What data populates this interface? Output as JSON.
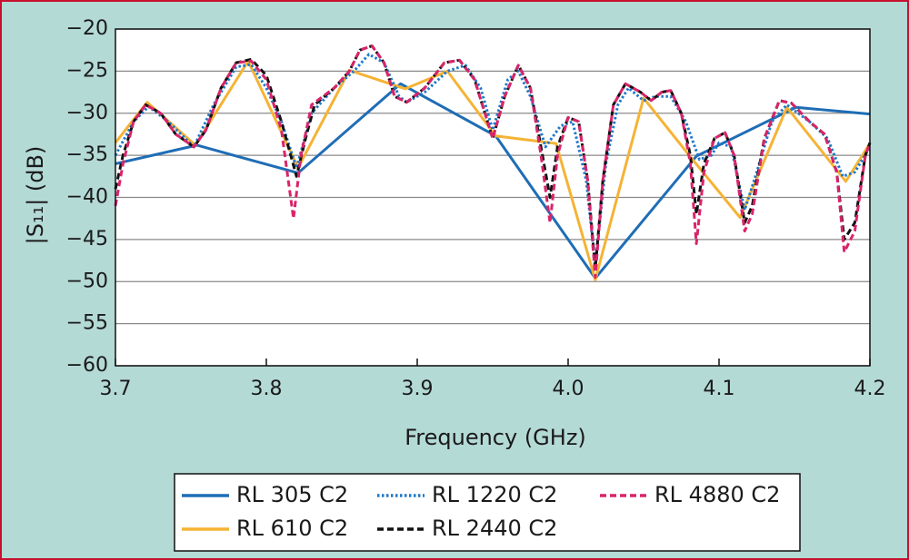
{
  "chart_data": {
    "type": "line",
    "xlabel": "Frequency (GHz)",
    "ylabel": "|S₁₁| (dB)",
    "xlim": [
      3.7,
      4.2
    ],
    "ylim": [
      -60,
      -20
    ],
    "xticks": [
      3.7,
      3.8,
      3.9,
      {
        "value": 4,
        "label": "4.0"
      },
      4.1,
      4.2
    ],
    "yticks": [
      {
        "value": -60,
        "label": "−60"
      },
      {
        "value": -55,
        "label": "−55"
      },
      {
        "value": -50,
        "label": "−50"
      },
      {
        "value": -45,
        "label": "−45"
      },
      {
        "value": -40,
        "label": "−40"
      },
      {
        "value": -35,
        "label": "−35"
      },
      {
        "value": -30,
        "label": "−30"
      },
      {
        "value": -25,
        "label": "−25"
      },
      {
        "value": -20,
        "label": "−20"
      }
    ],
    "grid": true,
    "series": [
      {
        "name": "RL 305 C2",
        "color": "#1f6db5",
        "line_style": "solid",
        "x": [
          3.7,
          3.754,
          3.821,
          3.889,
          3.952,
          4.018,
          4.085,
          4.151,
          4.2
        ],
        "values": [
          -36,
          -33.8,
          -37.1,
          -26.5,
          -32.7,
          -49.6,
          -35.1,
          -29.3,
          -30.1
        ]
      },
      {
        "name": "RL 610 C2",
        "color": "#f5b335",
        "line_style": "solid",
        "x": [
          3.7,
          3.721,
          3.753,
          3.788,
          3.821,
          3.855,
          3.892,
          3.92,
          3.952,
          3.992,
          4.018,
          4.05,
          4.082,
          4.114,
          4.145,
          4.184,
          4.2
        ],
        "values": [
          -33.5,
          -28.7,
          -33.8,
          -23.8,
          -36.5,
          -24.9,
          -27.1,
          -25,
          -32.7,
          -33.6,
          -49.8,
          -28.2,
          -35.4,
          -42.4,
          -29.3,
          -38.1,
          -33.6
        ]
      },
      {
        "name": "RL 1220 C2",
        "color": "#1f78c8",
        "line_style": "dotted",
        "x": [
          3.7,
          3.712,
          3.722,
          3.735,
          3.752,
          3.765,
          3.78,
          3.79,
          3.8,
          3.81,
          3.82,
          3.83,
          3.845,
          3.858,
          3.868,
          3.878,
          3.888,
          3.893,
          3.905,
          3.92,
          3.932,
          3.942,
          3.95,
          3.96,
          3.967,
          3.975,
          3.985,
          3.995,
          4.003,
          4.012,
          4.018,
          4.025,
          4.033,
          4.04,
          4.05,
          4.058,
          4.068,
          4.078,
          4.087,
          4.095,
          4.1,
          4.108,
          4.117,
          4.125,
          4.135,
          4.145,
          4.16,
          4.172,
          4.182,
          4.19,
          4.2
        ],
        "values": [
          -35,
          -31,
          -29.2,
          -31,
          -34,
          -29,
          -24.5,
          -24.2,
          -27,
          -31,
          -36.5,
          -30,
          -27,
          -25,
          -23,
          -24,
          -28,
          -28.7,
          -27.5,
          -25,
          -24.3,
          -27,
          -32,
          -26,
          -25,
          -28,
          -34,
          -31.5,
          -31,
          -38,
          -48,
          -36,
          -29,
          -27,
          -28.5,
          -28,
          -28,
          -31,
          -35.5,
          -35,
          -33.5,
          -34,
          -41.5,
          -37,
          -31,
          -29,
          -31,
          -33,
          -37.5,
          -37,
          -34
        ]
      },
      {
        "name": "RL 2440 C2",
        "color": "#111111",
        "line_style": "dashed",
        "x": [
          3.7,
          3.705,
          3.712,
          3.72,
          3.73,
          3.74,
          3.752,
          3.76,
          3.77,
          3.78,
          3.79,
          3.8,
          3.81,
          3.82,
          3.826,
          3.832,
          3.845,
          3.855,
          3.862,
          3.87,
          3.878,
          3.885,
          3.893,
          3.905,
          3.918,
          3.928,
          3.938,
          3.95,
          3.958,
          3.967,
          3.975,
          3.982,
          3.988,
          3.993,
          4,
          4.007,
          4.013,
          4.018,
          4.023,
          4.03,
          4.038,
          4.048,
          4.055,
          4.062,
          4.068,
          4.075,
          4.081,
          4.085,
          4.09,
          4.097,
          4.104,
          4.11,
          4.117,
          4.122,
          4.13,
          4.14,
          4.148,
          4.16,
          4.17,
          4.178,
          4.183,
          4.19,
          4.197,
          4.2
        ],
        "values": [
          -39,
          -35,
          -31,
          -29,
          -30,
          -32.5,
          -34,
          -32,
          -27,
          -24,
          -23.6,
          -25.5,
          -31,
          -37.5,
          -33,
          -29,
          -27,
          -25,
          -22.5,
          -22,
          -24,
          -28,
          -28.7,
          -27,
          -24,
          -23.7,
          -26,
          -33,
          -28,
          -24.3,
          -27,
          -34,
          -40,
          -34,
          -30.5,
          -31,
          -38,
          -48.5,
          -38,
          -29,
          -26.5,
          -27.5,
          -28.5,
          -27.5,
          -27.3,
          -30,
          -35,
          -42,
          -36,
          -33,
          -32.3,
          -35,
          -43,
          -41,
          -33,
          -28.5,
          -28.8,
          -31,
          -32.5,
          -37,
          -45,
          -43,
          -35,
          -33.5
        ]
      },
      {
        "name": "RL 4880 C2",
        "color": "#d9246a",
        "line_style": "dashed",
        "x": [
          3.7,
          3.705,
          3.712,
          3.72,
          3.73,
          3.74,
          3.752,
          3.76,
          3.77,
          3.78,
          3.79,
          3.8,
          3.81,
          3.818,
          3.823,
          3.83,
          3.845,
          3.855,
          3.862,
          3.87,
          3.878,
          3.885,
          3.893,
          3.905,
          3.918,
          3.928,
          3.938,
          3.95,
          3.958,
          3.967,
          3.975,
          3.982,
          3.988,
          3.993,
          4,
          4.007,
          4.013,
          4.018,
          4.023,
          4.03,
          4.038,
          4.048,
          4.055,
          4.062,
          4.068,
          4.075,
          4.081,
          4.085,
          4.09,
          4.097,
          4.104,
          4.11,
          4.117,
          4.122,
          4.13,
          4.14,
          4.148,
          4.16,
          4.17,
          4.178,
          4.183,
          4.19,
          4.197,
          4.2
        ],
        "values": [
          -41,
          -36,
          -31,
          -29,
          -30,
          -32.5,
          -34,
          -32,
          -27,
          -24,
          -23.8,
          -26,
          -32,
          -42.5,
          -35,
          -29,
          -27,
          -25,
          -22.5,
          -22,
          -24,
          -28,
          -28.7,
          -27,
          -24,
          -23.7,
          -26,
          -33,
          -28,
          -24.3,
          -27,
          -35,
          -43,
          -35,
          -30.5,
          -31,
          -38,
          -49.5,
          -38,
          -29,
          -26.5,
          -27.5,
          -28.5,
          -27.5,
          -27.3,
          -30,
          -36,
          -45.5,
          -37,
          -33,
          -32.3,
          -35,
          -44,
          -42,
          -33,
          -28.5,
          -28.8,
          -31,
          -32.5,
          -37,
          -46.5,
          -44,
          -35,
          -33.5
        ]
      }
    ]
  }
}
